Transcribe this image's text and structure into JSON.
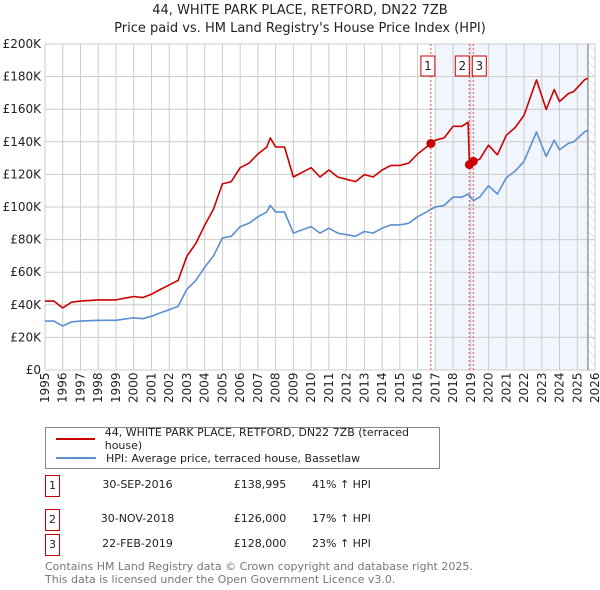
{
  "chart_data": {
    "type": "line",
    "title": "44, WHITE PARK PLACE, RETFORD, DN22 7ZB",
    "subtitle": "Price paid vs. HM Land Registry's House Price Index (HPI)",
    "xlim": [
      1995,
      2026
    ],
    "ylim": [
      0,
      200000
    ],
    "yticks": [
      0,
      20000,
      40000,
      60000,
      80000,
      100000,
      120000,
      140000,
      160000,
      180000,
      200000
    ],
    "ytick_labels": [
      "£0",
      "£20K",
      "£40K",
      "£60K",
      "£80K",
      "£100K",
      "£120K",
      "£140K",
      "£160K",
      "£180K",
      "£200K"
    ],
    "xtick_labels": [
      "1995",
      "1996",
      "1997",
      "1998",
      "1999",
      "2000",
      "2001",
      "2002",
      "2003",
      "2004",
      "2005",
      "2006",
      "2007",
      "2008",
      "2009",
      "2010",
      "2011",
      "2012",
      "2013",
      "2014",
      "2015",
      "2016",
      "2017",
      "2018",
      "2019",
      "2020",
      "2021",
      "2022",
      "2023",
      "2024",
      "2025",
      "2026"
    ],
    "grid": true,
    "shaded_range": [
      2017.0,
      2025.6
    ],
    "x": [
      1995,
      1995.5,
      1996,
      1996.5,
      1997,
      1998,
      1999,
      2000,
      2000.5,
      2001,
      2001.5,
      2002,
      2002.5,
      2003,
      2003.5,
      2004,
      2004.5,
      2005,
      2005.5,
      2006,
      2006.5,
      2007,
      2007.5,
      2007.7,
      2008,
      2008.5,
      2009,
      2009.5,
      2010,
      2010.5,
      2011,
      2011.5,
      2012,
      2012.5,
      2013,
      2013.5,
      2014,
      2014.5,
      2015,
      2015.5,
      2016,
      2016.5,
      2016.75,
      2017,
      2017.5,
      2018,
      2018.5,
      2018.85,
      2018.92,
      2019.15,
      2019.5,
      2020,
      2020.5,
      2021,
      2021.5,
      2022,
      2022.7,
      2023.25,
      2023.7,
      2024,
      2024.5,
      2024.8,
      2025.4,
      2025.6
    ],
    "series": [
      {
        "name": "44, WHITE PARK PLACE, RETFORD, DN22 7ZB (terraced house)",
        "color": "#cc0000",
        "values": [
          42.3,
          42.3,
          38.1,
          41.6,
          42.3,
          43,
          43,
          45.1,
          44.4,
          46.5,
          49.4,
          52.2,
          55,
          69.8,
          77.6,
          88.8,
          98.7,
          114.2,
          115.6,
          124.1,
          126.9,
          132.5,
          136.8,
          142.4,
          136.8,
          136.8,
          118.4,
          121.3,
          124.1,
          118.4,
          122.7,
          118.4,
          117,
          115.6,
          119.9,
          118.4,
          122.7,
          125.5,
          125.5,
          126.9,
          132.5,
          136.8,
          139,
          141,
          142.4,
          149.5,
          149.5,
          152,
          126,
          128,
          129.3,
          137.9,
          132,
          144,
          148.8,
          156.2,
          178,
          159.8,
          172,
          164.7,
          169.6,
          170.8,
          178,
          179
        ],
        "unit": "£K"
      },
      {
        "name": "HPI: Average price, terraced house, Bassetlaw",
        "color": "#5b8fd0",
        "values": [
          30,
          30,
          27,
          29.5,
          30,
          30.5,
          30.5,
          32,
          31.5,
          33,
          35,
          37,
          39,
          49.5,
          55,
          63,
          70,
          81,
          82,
          88,
          90,
          94,
          97,
          101,
          97,
          97,
          84,
          86,
          88,
          84,
          87,
          84,
          83,
          82,
          85,
          84,
          87,
          89,
          89,
          90,
          94,
          97,
          98.5,
          100,
          101,
          106,
          106,
          108,
          107,
          104,
          106,
          113,
          108,
          118,
          122,
          128,
          146,
          131,
          141,
          135,
          139,
          140,
          146,
          147
        ],
        "unit": "£K"
      }
    ],
    "sales": [
      {
        "id": "1",
        "x": 2016.75,
        "value": 138995,
        "date": "30-SEP-2016",
        "price": "£138,995",
        "hpi": "41% ↑ HPI"
      },
      {
        "id": "2",
        "x": 2018.92,
        "value": 126000,
        "date": "30-NOV-2018",
        "price": "£126,000",
        "hpi": "17% ↑ HPI"
      },
      {
        "id": "3",
        "x": 2019.14,
        "value": 128000,
        "date": "22-FEB-2019",
        "price": "£128,000",
        "hpi": "23% ↑ HPI"
      }
    ]
  },
  "footer": {
    "line1": "Contains HM Land Registry data © Crown copyright and database right 2025.",
    "line2": "This data is licensed under the Open Government Licence v3.0."
  }
}
